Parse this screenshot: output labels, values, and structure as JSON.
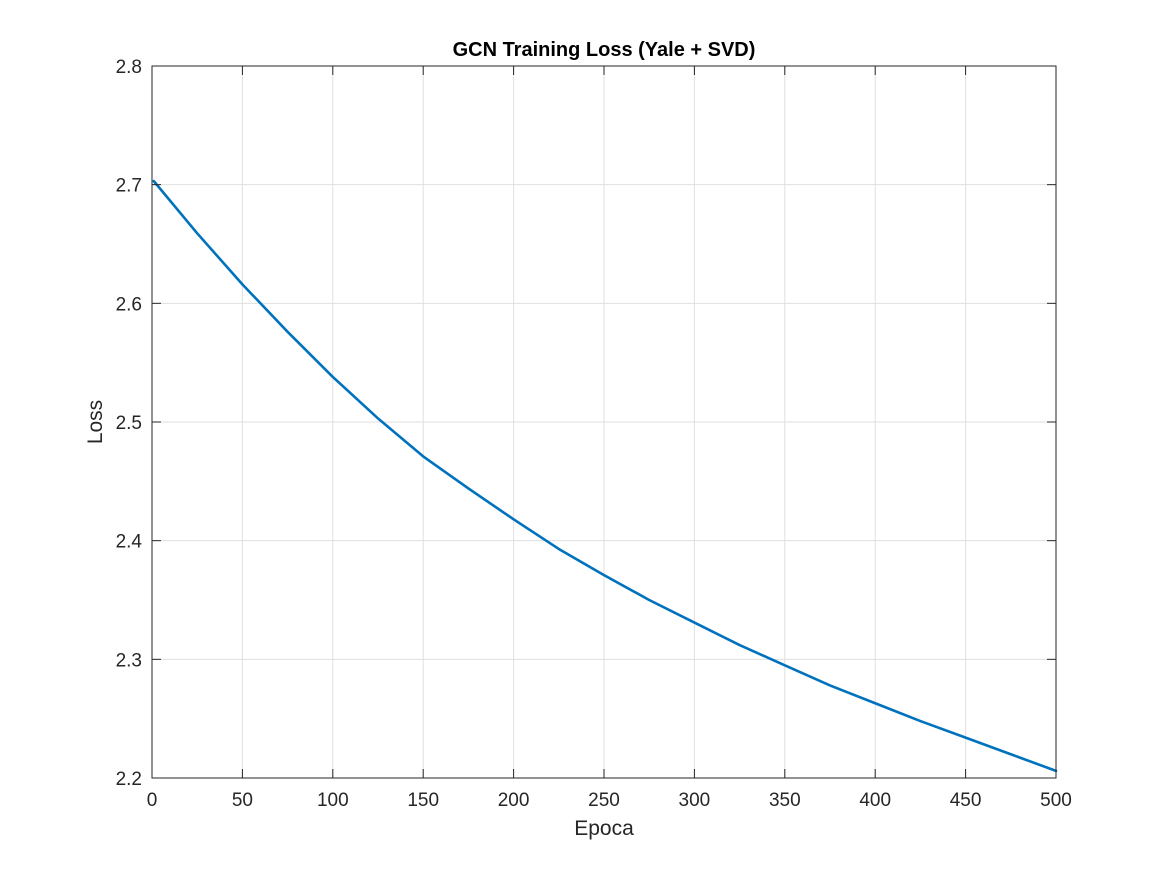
{
  "chart_data": {
    "type": "line",
    "title": "GCN Training Loss (Yale + SVD)",
    "xlabel": "Epoca",
    "ylabel": "Loss",
    "xlim": [
      0,
      500
    ],
    "ylim": [
      2.2,
      2.8
    ],
    "xticks": [
      0,
      50,
      100,
      150,
      200,
      250,
      300,
      350,
      400,
      450,
      500
    ],
    "yticks": [
      2.2,
      2.3,
      2.4,
      2.5,
      2.6,
      2.7,
      2.8
    ],
    "xtick_labels": [
      "0",
      "50",
      "100",
      "150",
      "200",
      "250",
      "300",
      "350",
      "400",
      "450",
      "500"
    ],
    "ytick_labels": [
      "2.2",
      "2.3",
      "2.4",
      "2.5",
      "2.6",
      "2.7",
      "2.8"
    ],
    "grid": true,
    "legend": "none",
    "series": [
      {
        "color": "#0072BD",
        "x": [
          1,
          25,
          50,
          75,
          100,
          125,
          150,
          175,
          200,
          225,
          250,
          275,
          300,
          325,
          350,
          375,
          400,
          425,
          450,
          475,
          500
        ],
        "y": [
          2.703,
          2.659,
          2.616,
          2.576,
          2.538,
          2.503,
          2.471,
          2.444,
          2.418,
          2.393,
          2.371,
          2.35,
          2.331,
          2.312,
          2.295,
          2.278,
          2.263,
          2.248,
          2.234,
          2.22,
          2.206
        ]
      }
    ]
  }
}
